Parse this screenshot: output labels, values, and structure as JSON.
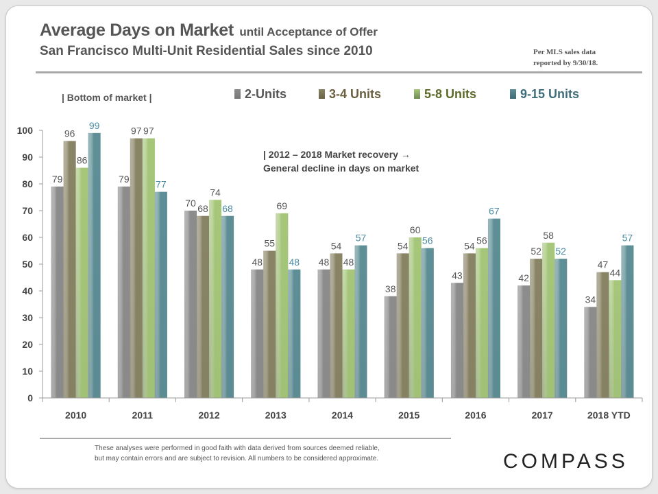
{
  "header": {
    "title": "Average Days on Market",
    "title_suffix": "until Acceptance of Offer",
    "subtitle": "San Francisco Multi-Unit  Residential Sales since 2010",
    "source_line1": "Per MLS sales data",
    "source_line2": "reported by 9/30/18."
  },
  "footer": {
    "disclaimer_line1": "These analyses were performed in good faith with data derived from sources deemed reliable,",
    "disclaimer_line2": "but may contain errors and are subject to revision. All numbers to be considered approximate.",
    "brand": "COMPASS"
  },
  "colors": {
    "s1": "#8c8c8c",
    "s2": "#8a8466",
    "s3": "#a6c77a",
    "s4": "#5f8f96",
    "label_dark": "#555555",
    "label_teal": "#4a8ba3"
  },
  "chart_data": {
    "type": "bar",
    "categories": [
      "2010",
      "2011",
      "2012",
      "2013",
      "2014",
      "2015",
      "2016",
      "2017",
      "2018 YTD"
    ],
    "series": [
      {
        "name": "2-Units",
        "values": [
          79,
          79,
          70,
          48,
          48,
          38,
          43,
          42,
          34
        ]
      },
      {
        "name": "3-4 Units",
        "values": [
          96,
          97,
          68,
          55,
          54,
          54,
          54,
          52,
          47
        ]
      },
      {
        "name": "5-8 Units",
        "values": [
          86,
          97,
          74,
          69,
          48,
          60,
          56,
          58,
          44
        ]
      },
      {
        "name": "9-15 Units",
        "values": [
          99,
          77,
          68,
          48,
          57,
          56,
          67,
          52,
          57
        ]
      }
    ],
    "ylim": [
      0,
      100
    ],
    "yticks": [
      0,
      10,
      20,
      30,
      40,
      50,
      60,
      70,
      80,
      90,
      100
    ],
    "legend_position": "top",
    "annotations": [
      "| Bottom of market |",
      "|   2012  – 2018  Market  recovery  →",
      "General  decline  in  days  on  market"
    ]
  }
}
